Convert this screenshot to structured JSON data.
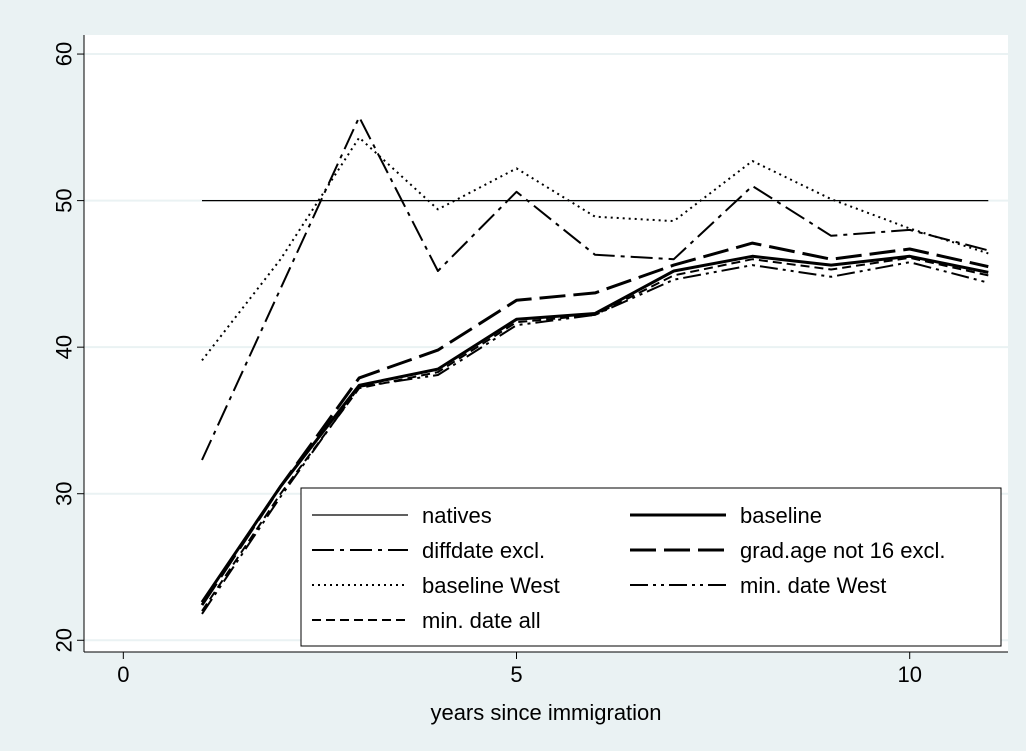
{
  "chart_data": {
    "type": "line",
    "title": "",
    "xlabel": "years since immigration",
    "ylabel": "",
    "xlim": [
      -0.5,
      11.25
    ],
    "ylim": [
      19.2,
      61.3
    ],
    "xticks": [
      0,
      5,
      10
    ],
    "yticks": [
      20,
      30,
      40,
      50,
      60
    ],
    "grid": "horizontal",
    "legend_position": "bottom-right",
    "background_color": "#eaf2f3",
    "plot_background_color": "#ffffff",
    "gridline_color": "#eaf2f3",
    "line_color": "#000000",
    "series": [
      {
        "name": "natives",
        "style": "solid-thin",
        "x": [
          1,
          11
        ],
        "y": [
          50,
          50
        ]
      },
      {
        "name": "baseline",
        "style": "solid-thick",
        "x": [
          1,
          2,
          3,
          4,
          5,
          6,
          7,
          8,
          9,
          10,
          11
        ],
        "y": [
          22.6,
          30.5,
          37.4,
          38.5,
          41.9,
          42.3,
          45.2,
          46.2,
          45.6,
          46.2,
          45.1
        ]
      },
      {
        "name": "diffdate excl.",
        "style": "dashdot",
        "x": [
          1,
          2,
          3,
          4,
          5,
          6,
          7,
          8,
          9,
          10,
          11
        ],
        "y": [
          32.3,
          44.0,
          55.7,
          45.2,
          50.6,
          46.3,
          46.0,
          51.0,
          47.6,
          48.0,
          46.6
        ]
      },
      {
        "name": "grad.age not 16 excl.",
        "style": "longdash",
        "x": [
          1,
          2,
          3,
          4,
          5,
          6,
          7,
          8,
          9,
          10,
          11
        ],
        "y": [
          22.4,
          30.5,
          37.9,
          39.8,
          43.2,
          43.7,
          45.6,
          47.1,
          46.0,
          46.7,
          45.5
        ]
      },
      {
        "name": "baseline West",
        "style": "dotted",
        "x": [
          1,
          2,
          3,
          4,
          5,
          6,
          7,
          8,
          9,
          10,
          11
        ],
        "y": [
          39.1,
          46.0,
          54.3,
          49.4,
          52.2,
          48.9,
          48.6,
          52.7,
          50.1,
          48.1,
          46.4
        ]
      },
      {
        "name": "min. date West",
        "style": "dashdotdot",
        "x": [
          1,
          2,
          3,
          4,
          5,
          6,
          7,
          8,
          9,
          10,
          11
        ],
        "y": [
          21.8,
          29.8,
          37.3,
          38.1,
          41.5,
          42.2,
          44.6,
          45.6,
          44.8,
          45.8,
          44.4
        ]
      },
      {
        "name": "min. date all",
        "style": "dashed",
        "x": [
          1,
          2,
          3,
          4,
          5,
          6,
          7,
          8,
          9,
          10,
          11
        ],
        "y": [
          22.0,
          30.0,
          37.2,
          38.3,
          41.7,
          42.2,
          44.9,
          46.0,
          45.3,
          46.1,
          44.9
        ]
      }
    ]
  }
}
